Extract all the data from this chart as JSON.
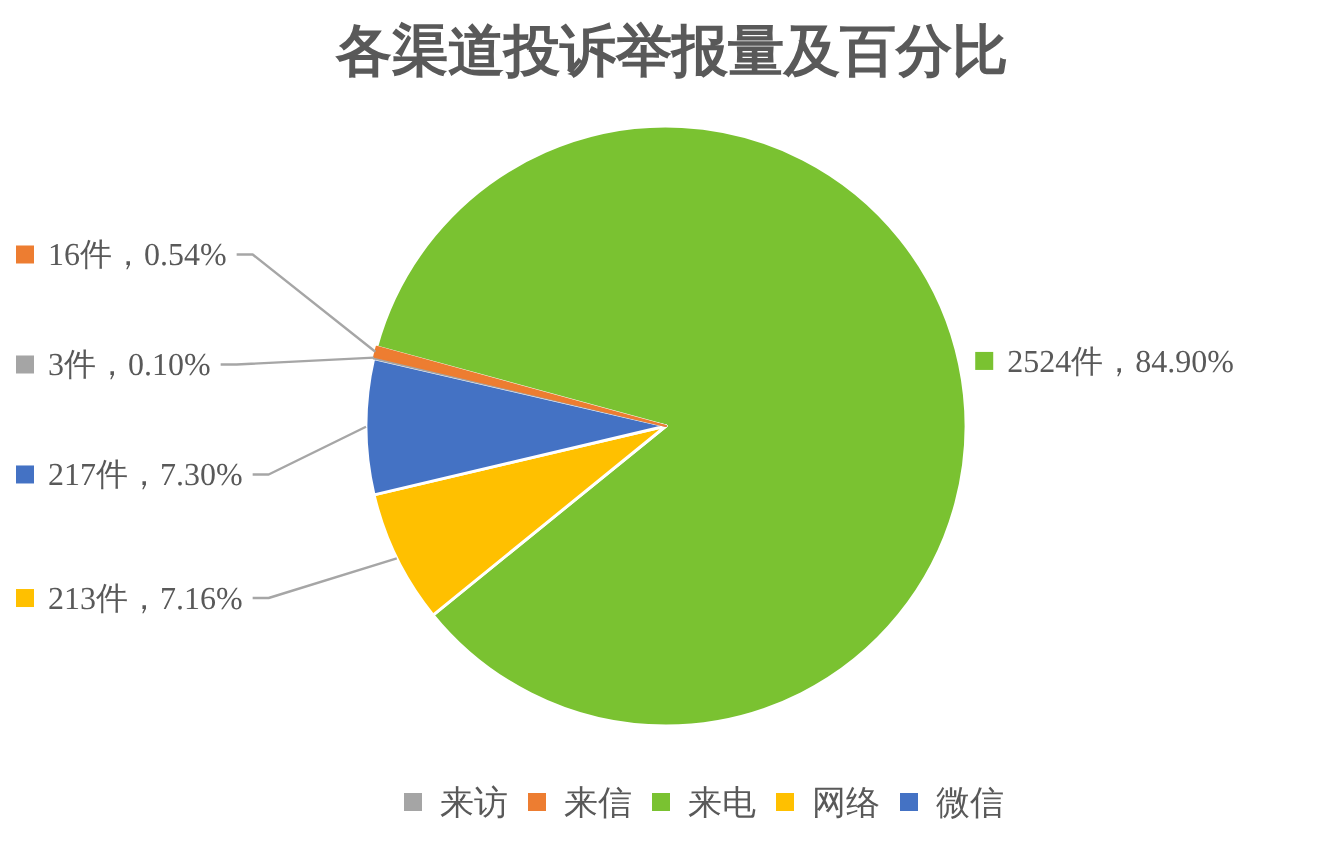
{
  "chart_data": {
    "type": "pie",
    "title": "各渠道投诉举报量及百分比",
    "categories": [
      "来访",
      "来信",
      "来电",
      "网络",
      "微信"
    ],
    "values": [
      3,
      16,
      2524,
      213,
      217
    ],
    "colors": [
      "#a5a5a5",
      "#ed7d31",
      "#7ac231",
      "#ffc000",
      "#4472c4"
    ],
    "value_labels": [
      "3件，0.10%",
      "16件，0.54%",
      "2524件，84.90%",
      "213件，7.16%",
      "217件，7.30%"
    ],
    "legend": "bottom"
  }
}
